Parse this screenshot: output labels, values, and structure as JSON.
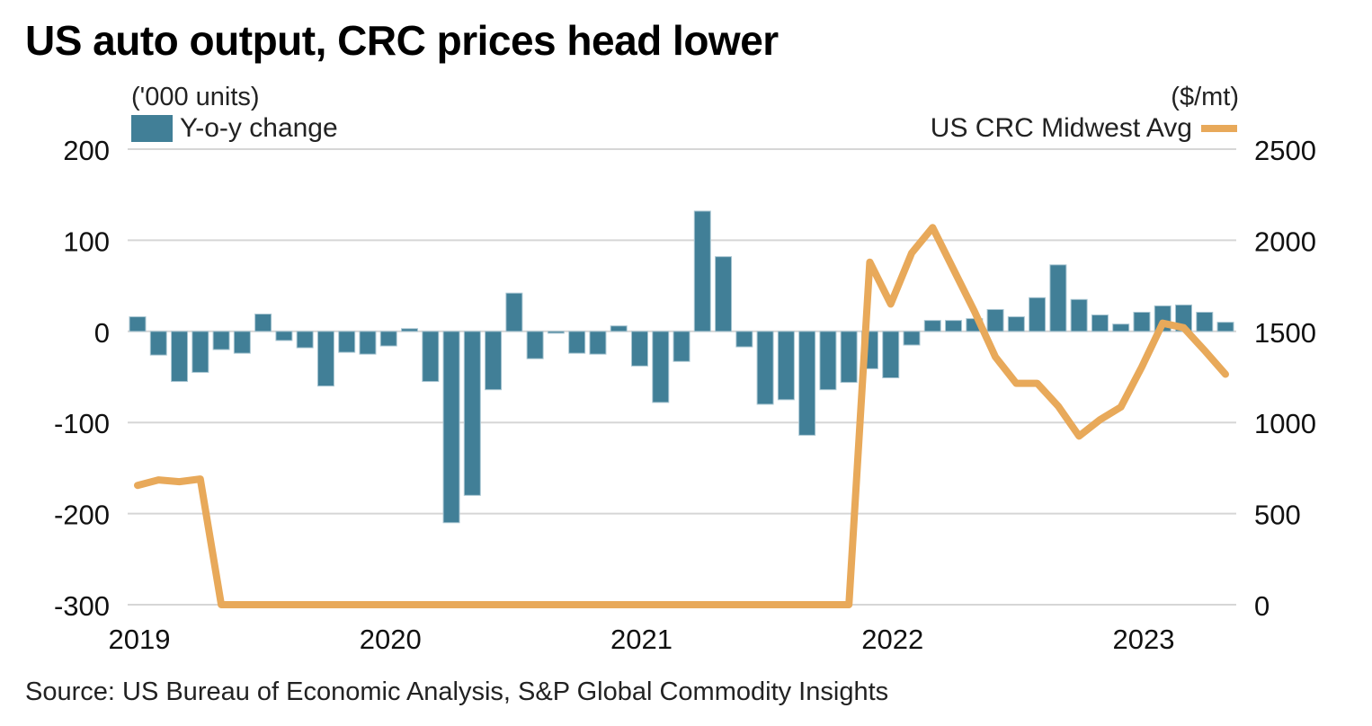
{
  "title": "US auto output, CRC prices head lower",
  "source": "Source: US Bureau of Economic Analysis, S&P Global Commodity Insights",
  "colors": {
    "bars": "#417f97",
    "line": "#e8a95a",
    "grid": "#d6d6d6"
  },
  "chart_data": {
    "type": "bar+line",
    "title": "US auto output, CRC prices head lower",
    "x_tick_labels": [
      "2019",
      "2020",
      "2021",
      "2022",
      "2023"
    ],
    "x_start": "2019-01",
    "x_frequency": "monthly",
    "left_axis": {
      "label": "('000 units)",
      "ylim": [
        -300,
        200
      ],
      "ticks": [
        "200",
        "100",
        "0",
        "-100",
        "-200",
        "-300"
      ],
      "tick_values": [
        200,
        100,
        0,
        -100,
        -200,
        -300
      ]
    },
    "right_axis": {
      "label": "($/mt)",
      "ylim": [
        0,
        2500
      ],
      "ticks": [
        "2500",
        "2000",
        "1500",
        "1000",
        "500",
        "0"
      ],
      "tick_values": [
        2500,
        2000,
        1500,
        1000,
        500,
        0
      ]
    },
    "grid": true,
    "legend": [
      {
        "name": "Y-o-y change",
        "placement": "top-left",
        "type": "bar"
      },
      {
        "name": "US CRC Midwest Avg",
        "placement": "top-right",
        "type": "line"
      }
    ],
    "series": [
      {
        "name": "Y-o-y change",
        "type": "bar",
        "axis": "left",
        "values": [
          16,
          -26,
          -55,
          -45,
          -20,
          -24,
          19,
          -10,
          -18,
          -60,
          -23,
          -25,
          -16,
          3,
          -55,
          -210,
          -180,
          -64,
          42,
          -30,
          -2,
          -24,
          -25,
          6,
          -38,
          -78,
          -33,
          132,
          82,
          -17,
          -80,
          -75,
          -114,
          -64,
          -56,
          -41,
          -51,
          -15,
          12,
          12,
          14,
          24,
          16,
          37,
          73,
          35,
          18,
          8,
          21,
          28,
          29,
          21,
          10
        ]
      },
      {
        "name": "US CRC Midwest Avg",
        "type": "line",
        "axis": "right",
        "values": [
          655,
          685,
          675,
          690,
          0,
          0,
          0,
          0,
          0,
          0,
          0,
          0,
          0,
          0,
          0,
          0,
          0,
          0,
          0,
          0,
          0,
          0,
          0,
          0,
          0,
          0,
          0,
          0,
          0,
          0,
          0,
          0,
          0,
          0,
          0,
          1880,
          1650,
          1930,
          2070,
          1840,
          1610,
          1360,
          1215,
          1215,
          1090,
          925,
          1015,
          1085,
          1305,
          1545,
          1520,
          1395,
          1265
        ]
      }
    ]
  }
}
